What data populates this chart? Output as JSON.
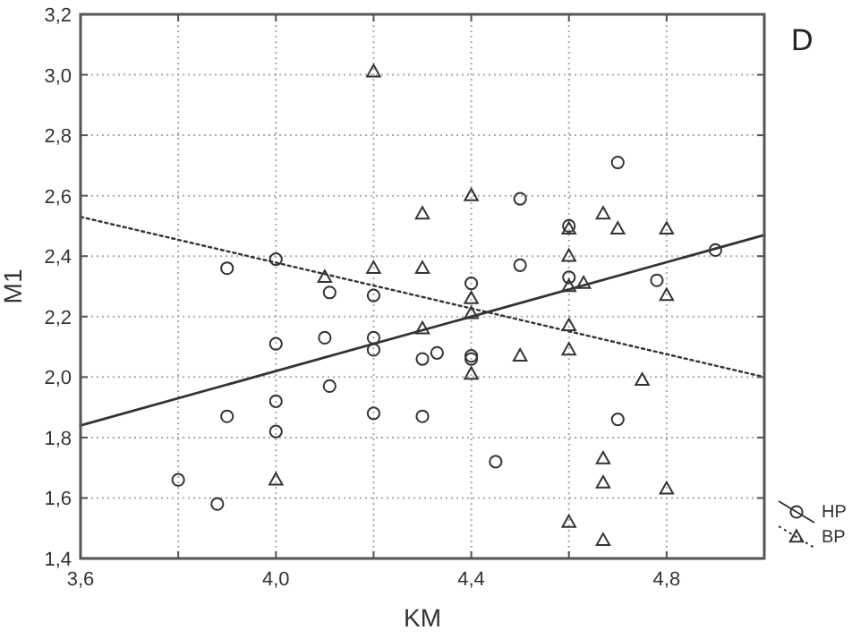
{
  "chart_data": {
    "type": "scatter",
    "xlabel": "KM",
    "ylabel": "M1",
    "annotations": [
      "D"
    ],
    "xlim": [
      3.6,
      5.0
    ],
    "ylim": [
      1.4,
      3.2
    ],
    "xticks": [
      {
        "value": 3.6,
        "label": "3,6"
      },
      {
        "value": 3.8,
        "label": null
      },
      {
        "value": 4.0,
        "label": "4,0"
      },
      {
        "value": 4.2,
        "label": null
      },
      {
        "value": 4.4,
        "label": "4,4"
      },
      {
        "value": 4.6,
        "label": null
      },
      {
        "value": 4.8,
        "label": "4,8"
      },
      {
        "value": 5.0,
        "label": null
      }
    ],
    "yticks": [
      {
        "value": 1.4,
        "label": "1,4"
      },
      {
        "value": 1.6,
        "label": "1,6"
      },
      {
        "value": 1.8,
        "label": "1,8"
      },
      {
        "value": 2.0,
        "label": "2,0"
      },
      {
        "value": 2.2,
        "label": "2,2"
      },
      {
        "value": 2.4,
        "label": "2,4"
      },
      {
        "value": 2.6,
        "label": "2,6"
      },
      {
        "value": 2.8,
        "label": "2,8"
      },
      {
        "value": 3.0,
        "label": "3,0"
      },
      {
        "value": 3.2,
        "label": "3,2"
      }
    ],
    "grid": true,
    "legend": "bottom right",
    "series": [
      {
        "name": "HP",
        "marker": "circle",
        "color": "#333333",
        "x": [
          3.8,
          3.88,
          3.9,
          4.0,
          4.0,
          4.0,
          4.1,
          4.11,
          4.11,
          4.2,
          4.2,
          4.2,
          4.2,
          4.3,
          4.33,
          4.3,
          4.4,
          3.9,
          4.0,
          4.7,
          4.5,
          4.6,
          4.5,
          4.6,
          4.78,
          4.9,
          4.4,
          4.4,
          4.7,
          4.45
        ],
        "values": [
          1.66,
          1.58,
          1.87,
          2.11,
          1.92,
          1.82,
          2.13,
          1.97,
          2.28,
          2.27,
          2.13,
          2.09,
          1.88,
          2.06,
          2.08,
          1.87,
          2.07,
          2.36,
          2.39,
          2.71,
          2.59,
          2.5,
          2.37,
          2.33,
          2.32,
          2.42,
          2.31,
          2.06,
          1.86,
          1.72
        ]
      },
      {
        "name": "BP",
        "marker": "triangle",
        "color": "#333333",
        "x": [
          4.2,
          4.3,
          4.4,
          4.2,
          4.3,
          4.1,
          4.3,
          4.4,
          4.4,
          4.0,
          4.67,
          4.7,
          4.8,
          4.6,
          4.6,
          4.6,
          4.63,
          4.8,
          4.4,
          4.6,
          4.5,
          4.6,
          4.75,
          4.67,
          4.67,
          4.8,
          4.6,
          4.67
        ],
        "values": [
          3.01,
          2.54,
          2.6,
          2.36,
          2.36,
          2.33,
          2.16,
          2.21,
          2.01,
          1.66,
          2.54,
          2.49,
          2.49,
          2.49,
          2.4,
          2.3,
          2.31,
          2.27,
          2.26,
          2.17,
          2.07,
          2.09,
          1.99,
          1.73,
          1.65,
          1.63,
          1.52,
          1.46
        ]
      },
      {
        "type": "line",
        "line_style": "solid",
        "color": "#333333",
        "x": [
          3.6,
          5.0
        ],
        "values": [
          1.84,
          2.47
        ]
      },
      {
        "type": "line",
        "line_style": "dotted",
        "color": "#333333",
        "x": [
          3.6,
          5.0
        ],
        "values": [
          2.53,
          2.0
        ]
      }
    ]
  }
}
